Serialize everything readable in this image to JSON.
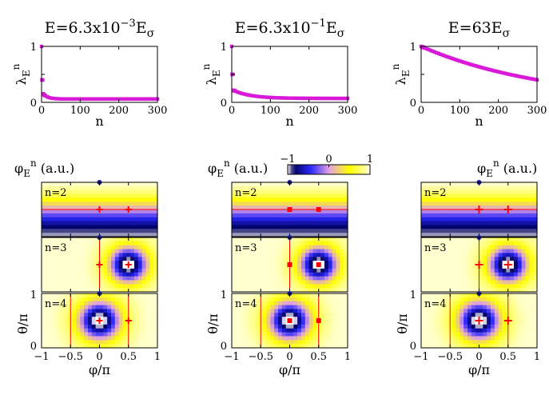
{
  "colors": {
    "spectrum_marker": "#d81ad8",
    "axis": "#000000",
    "nodal_line": "#ff0000",
    "pole_marker": "#1a1aa0",
    "cmap_neg": "#000080",
    "cmap_mid": "#e0a0e0",
    "cmap_pos": "#ffff00"
  },
  "chart_data": [
    {
      "type": "scatter",
      "title_main": "E=6.3x10",
      "title_exp": "−3",
      "title_tail": "E",
      "title_sub": "σ",
      "ylabel_main": "λ",
      "ylabel_sub": "E",
      "ylabel_sup": "n",
      "xlabel": "n",
      "xlim": [
        0,
        300
      ],
      "ylim": [
        0,
        1
      ],
      "xticks": [
        "0",
        "100",
        "200",
        "300"
      ],
      "yticks": [
        "0",
        "1"
      ],
      "decay": "fast"
    },
    {
      "type": "scatter",
      "title_main": "E=6.3x10",
      "title_exp": "−1",
      "title_tail": "E",
      "title_sub": "σ",
      "ylabel_main": "λ",
      "ylabel_sub": "E",
      "ylabel_sup": "n",
      "xlabel": "n",
      "xlim": [
        0,
        300
      ],
      "ylim": [
        0,
        1
      ],
      "xticks": [
        "0",
        "100",
        "200",
        "300"
      ],
      "yticks": [
        "0",
        "1"
      ],
      "decay": "medium"
    },
    {
      "type": "scatter",
      "title_main": "E=63E",
      "title_exp": "",
      "title_tail": "",
      "title_sub": "σ",
      "ylabel_main": "λ",
      "ylabel_sub": "E",
      "ylabel_sup": "n",
      "xlabel": "n",
      "xlim": [
        0,
        300
      ],
      "ylim": [
        0,
        1
      ],
      "xticks": [
        "0",
        "100",
        "200",
        "300"
      ],
      "yticks": [
        "0",
        "1"
      ],
      "decay": "slow"
    },
    {
      "type": "heatmap",
      "phi_label_main": "φ",
      "phi_label_sub": "E",
      "phi_label_sup": "n",
      "phi_label_unit": " (a.u.)",
      "colorbar": {
        "ticks": [
          "−1",
          "0",
          "1"
        ],
        "range": [
          -1,
          1
        ]
      },
      "panels": [
        {
          "n_label": "n=2",
          "mode": 2
        },
        {
          "n_label": "n=3",
          "mode": 3
        },
        {
          "n_label": "n=4",
          "mode": 4
        }
      ],
      "xlabel": "φ/π",
      "ylabel": "θ/π",
      "xlim": [
        -1,
        1
      ],
      "ylim": [
        0,
        1
      ],
      "xticks": [
        "−1",
        "−0.5",
        "0",
        "0.5",
        "1"
      ],
      "yticks": [
        "0",
        "1"
      ]
    }
  ]
}
